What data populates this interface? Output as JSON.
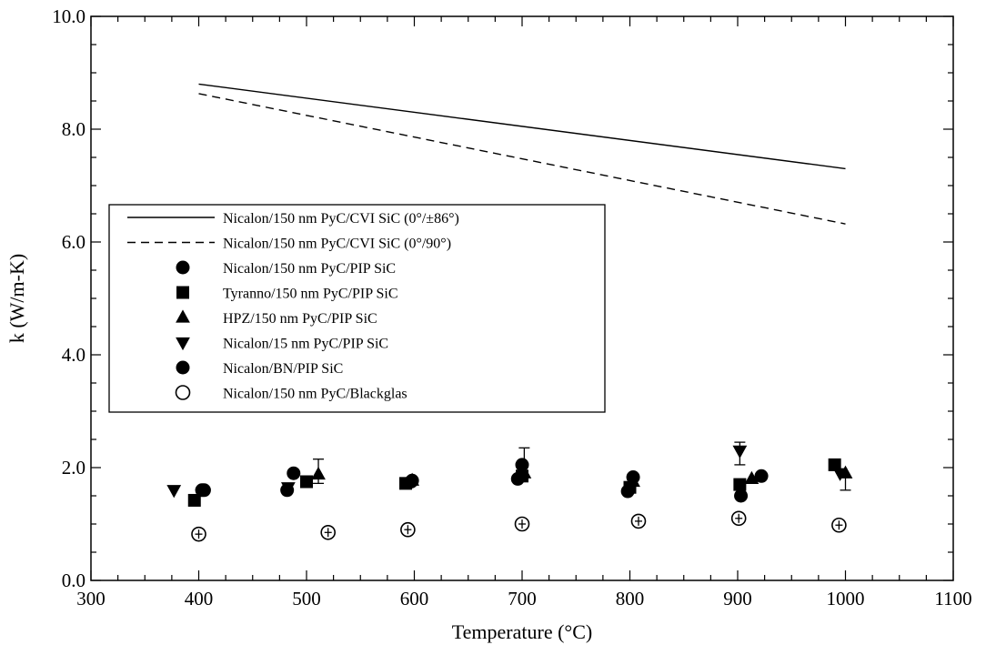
{
  "chart_data": {
    "type": "scatter",
    "title": "",
    "xlabel": "Temperature (°C)",
    "ylabel": "k (W/m-K)",
    "xlim": [
      300,
      1100
    ],
    "ylim": [
      0,
      10
    ],
    "x_ticks": [
      300,
      400,
      500,
      600,
      700,
      800,
      900,
      1000,
      1100
    ],
    "x_tick_labels": [
      "300",
      "400",
      "500",
      "600",
      "700",
      "800",
      "900",
      "1000",
      "1100"
    ],
    "y_ticks": [
      0,
      2,
      4,
      6,
      8,
      10
    ],
    "y_tick_labels": [
      "0.0",
      "2.0",
      "4.0",
      "6.0",
      "8.0",
      "10.0"
    ],
    "grid": false,
    "legend_position": "center-left",
    "series": [
      {
        "name": "Nicalon/150 nm PyC/CVI SiC (0°/±86°)",
        "kind": "line",
        "style": "solid",
        "x": [
          400,
          1000
        ],
        "y": [
          8.8,
          7.3
        ]
      },
      {
        "name": "Nicalon/150 nm PyC/CVI SiC (0°/90°)",
        "kind": "line",
        "style": "dashed",
        "x": [
          400,
          1000
        ],
        "y": [
          8.63,
          6.32
        ]
      },
      {
        "name": "Nicalon/150 nm PyC/PIP SiC",
        "marker": "circle",
        "filled": true,
        "x": [
          405,
          488,
          598,
          700,
          803,
          922
        ],
        "y": [
          1.6,
          1.9,
          1.77,
          2.05,
          1.83,
          1.85
        ]
      },
      {
        "name": "Tyranno/150 nm PyC/PIP SiC",
        "marker": "square",
        "filled": true,
        "x": [
          396,
          500,
          592,
          700,
          800,
          902,
          990
        ],
        "y": [
          1.42,
          1.75,
          1.72,
          1.85,
          1.65,
          1.7,
          2.05
        ]
      },
      {
        "name": "HPZ/150 nm PyC/PIP SiC",
        "marker": "triangle-up",
        "filled": true,
        "x": [
          511,
          598,
          702,
          803,
          913,
          1000
        ],
        "y": [
          1.88,
          1.77,
          1.9,
          1.75,
          1.8,
          1.9
        ],
        "yerr_top": [
          2.15,
          null,
          2.35,
          null,
          null,
          null
        ],
        "yerr_bottom": [
          1.72,
          null,
          null,
          null,
          null,
          1.6
        ]
      },
      {
        "name": "Nicalon/15 nm PyC/PIP SiC",
        "marker": "triangle-down",
        "filled": true,
        "x": [
          377,
          483,
          902,
          995
        ],
        "y": [
          1.6,
          1.65,
          2.3,
          1.9
        ],
        "yerr_top": [
          null,
          null,
          2.45,
          null
        ],
        "yerr_bottom": [
          null,
          null,
          2.05,
          null
        ]
      },
      {
        "name": "Nicalon/BN/PIP SiC",
        "marker": "circle",
        "filled": true,
        "x": [
          403,
          482,
          597,
          696,
          798,
          903
        ],
        "y": [
          1.6,
          1.6,
          1.75,
          1.8,
          1.58,
          1.5
        ]
      },
      {
        "name": "Nicalon/150 nm PyC/Blackglas",
        "marker": "circle",
        "filled": false,
        "error_bars": true,
        "x": [
          400,
          520,
          594,
          700,
          808,
          901,
          994
        ],
        "y": [
          0.82,
          0.85,
          0.9,
          1.0,
          1.05,
          1.1,
          0.98
        ]
      }
    ]
  }
}
